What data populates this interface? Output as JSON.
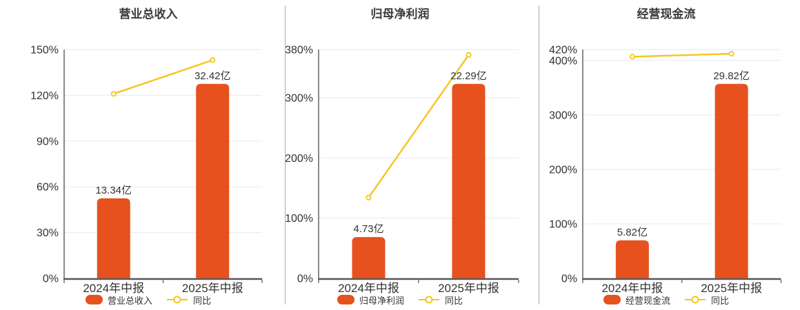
{
  "colors": {
    "bar": "#E6511E",
    "line": "#F5C51D",
    "axis": "#55575E",
    "grid": "#E6E9F1",
    "text": "#333333",
    "title": "#3A3A3A",
    "divider": "#A9ABA4",
    "background": "#FFFFFF"
  },
  "chart_data": [
    {
      "type": "bar",
      "title": "营业总收入",
      "categories": [
        "2024年中报",
        "2025年中报"
      ],
      "series": [
        {
          "name": "营业总收入",
          "type": "bar",
          "unit": "亿",
          "values": [
            13.34,
            32.42
          ],
          "labels": [
            "13.34亿",
            "32.42亿"
          ]
        },
        {
          "name": "同比",
          "type": "line",
          "unit": "%",
          "values": [
            121.0,
            143.1
          ]
        }
      ],
      "ylim": [
        0,
        150
      ],
      "yticks": [
        0,
        30,
        60,
        90,
        120,
        150
      ],
      "ytick_labels": [
        "0%",
        "30%",
        "60%",
        "90%",
        "120%",
        "150%"
      ],
      "legend": [
        "营业总收入",
        "同比"
      ],
      "legend_position": "bottom",
      "grid": true
    },
    {
      "type": "bar",
      "title": "归母净利润",
      "categories": [
        "2024年中报",
        "2025年中报"
      ],
      "series": [
        {
          "name": "归母净利润",
          "type": "bar",
          "unit": "亿",
          "values": [
            4.73,
            22.29
          ],
          "labels": [
            "4.73亿",
            "22.29亿"
          ]
        },
        {
          "name": "同比",
          "type": "line",
          "unit": "%",
          "values": [
            134.2,
            371.2
          ]
        }
      ],
      "ylim": [
        0,
        380
      ],
      "yticks": [
        0,
        100,
        200,
        300,
        380
      ],
      "ytick_labels": [
        "0%",
        "100%",
        "200%",
        "300%",
        "380%"
      ],
      "legend": [
        "归母净利润",
        "同比"
      ],
      "legend_position": "bottom",
      "grid": true
    },
    {
      "type": "bar",
      "title": "经营现金流",
      "categories": [
        "2024年中报",
        "2025年中报"
      ],
      "series": [
        {
          "name": "经营现金流",
          "type": "bar",
          "unit": "亿",
          "values": [
            5.82,
            29.82
          ],
          "labels": [
            "5.82亿",
            "29.82亿"
          ]
        },
        {
          "name": "同比",
          "type": "line",
          "unit": "%",
          "values": [
            407.0,
            412.4
          ]
        }
      ],
      "ylim": [
        0,
        420
      ],
      "yticks": [
        0,
        100,
        200,
        300,
        400,
        420
      ],
      "ytick_labels": [
        "0%",
        "100%",
        "200%",
        "300%",
        "400%",
        "420%"
      ],
      "legend": [
        "经营现金流",
        "同比"
      ],
      "legend_position": "bottom",
      "grid": true
    }
  ]
}
